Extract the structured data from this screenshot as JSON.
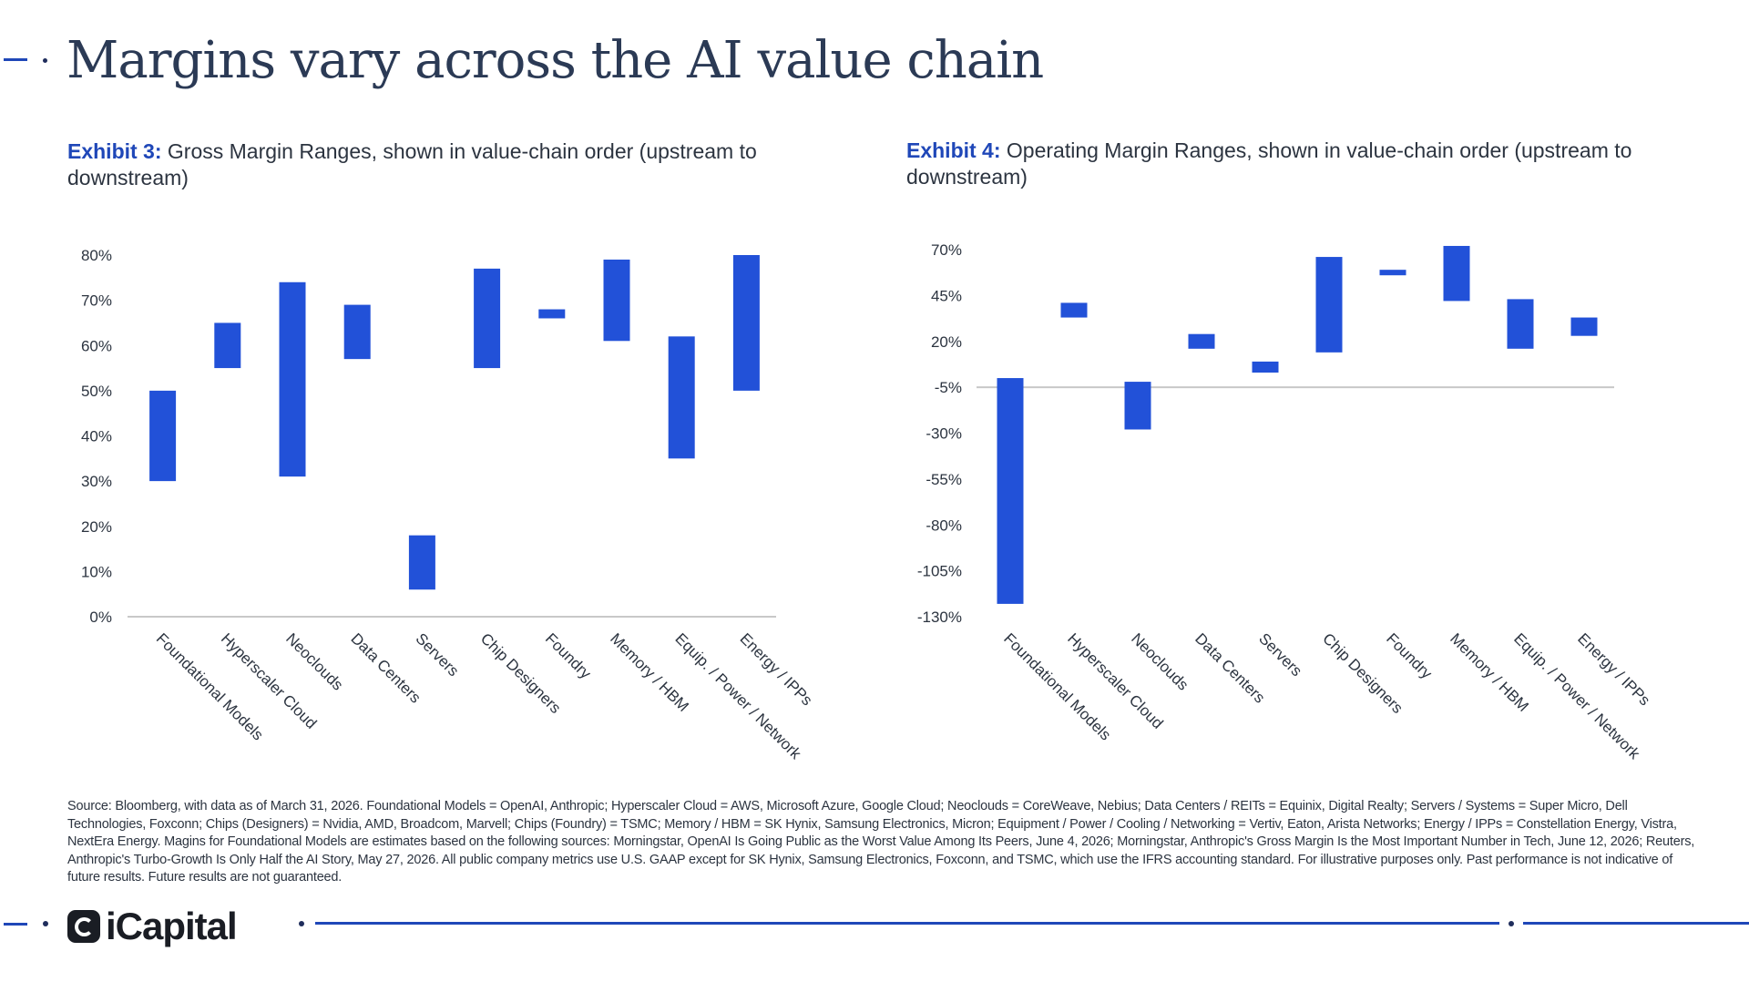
{
  "page": {
    "title": "Margins vary across the AI value chain"
  },
  "exhibit3": {
    "label": "Exhibit 3:",
    "title": "Gross Margin Ranges, shown in value-chain order (upstream to downstream)"
  },
  "exhibit4": {
    "label": "Exhibit 4:",
    "title": "Operating Margin Ranges, shown in value-chain order (upstream to downstream)"
  },
  "chart_data": [
    {
      "type": "bar",
      "subtype": "floating-range",
      "title": "Gross Margin Ranges, shown in value-chain order (upstream to downstream)",
      "categories": [
        "Foundational Models",
        "Hyperscaler Cloud",
        "Neoclouds",
        "Data Centers",
        "Servers",
        "Chip Designers",
        "Foundry",
        "Memory / HBM",
        "Equip. / Power / Network",
        "Energy / IPPs"
      ],
      "series": [
        {
          "low": [
            30,
            55,
            31,
            57,
            6,
            55,
            66,
            61,
            35,
            50
          ],
          "high": [
            50,
            65,
            74,
            69,
            18,
            77,
            68,
            79,
            62,
            80
          ]
        }
      ],
      "ylim": [
        0,
        80
      ],
      "yticks": [
        0,
        10,
        20,
        30,
        40,
        50,
        60,
        70,
        80
      ],
      "ytick_labels": [
        "0%",
        "10%",
        "20%",
        "30%",
        "40%",
        "50%",
        "60%",
        "70%",
        "80%"
      ],
      "color": "#2251d8",
      "grid": false
    },
    {
      "type": "bar",
      "subtype": "floating-range",
      "title": "Operating Margin Ranges, shown in value-chain order (upstream to downstream)",
      "categories": [
        "Foundational Models",
        "Hyperscaler Cloud",
        "Neoclouds",
        "Data Centers",
        "Servers",
        "Chip Designers",
        "Foundry",
        "Memory / HBM",
        "Equip. / Power / Network",
        "Energy / IPPs"
      ],
      "series": [
        {
          "low": [
            -123,
            33,
            -28,
            16,
            3,
            14,
            56,
            42,
            16,
            23
          ],
          "high": [
            0,
            41,
            -2,
            24,
            9,
            66,
            59,
            72,
            43,
            33
          ]
        }
      ],
      "ylim": [
        -130,
        70
      ],
      "yticks": [
        -130,
        -105,
        -80,
        -55,
        -30,
        -5,
        20,
        45,
        70
      ],
      "ytick_labels": [
        "-130%",
        "-105%",
        "-80%",
        "-55%",
        "-30%",
        "-5%",
        "20%",
        "45%",
        "70%"
      ],
      "color": "#2251d8",
      "grid": false
    }
  ],
  "source_note": "Source: Bloomberg, with data as of March 31, 2026. Foundational Models = OpenAI, Anthropic; Hyperscaler Cloud = AWS, Microsoft Azure, Google Cloud; Neoclouds = CoreWeave, Nebius; Data Centers / REITs = Equinix, Digital Realty; Servers / Systems = Super Micro, Dell Technologies, Foxconn; Chips (Designers) = Nvidia, AMD, Broadcom, Marvell; Chips (Foundry) = TSMC; Memory / HBM = SK Hynix, Samsung Electronics, Micron; Equipment / Power / Cooling / Networking = Vertiv, Eaton, Arista Networks; Energy / IPPs = Constellation Energy, Vistra, NextEra Energy. Magins for Foundational Models are estimates based on the following sources: Morningstar, OpenAI Is Going Public as the Worst Value Among Its Peers, June 4, 2026; Morningstar, Anthropic's Gross Margin Is the Most Important Number in Tech, June 12, 2026; Reuters, Anthropic's Turbo-Growth Is Only Half the AI Story, May 27, 2026. All public company metrics use U.S. GAAP except for SK Hynix, Samsung Electronics, Foxconn, and TSMC, which use the IFRS accounting standard. For illustrative purposes only. Past performance is not indicative of future results. Future results are not guaranteed.",
  "footer": {
    "logo_text": "iCapital",
    "logo_icon": "icapital-logo-icon"
  },
  "colors": {
    "accent": "#1f47b8",
    "bar": "#2251d8",
    "title": "#2b3a55"
  }
}
